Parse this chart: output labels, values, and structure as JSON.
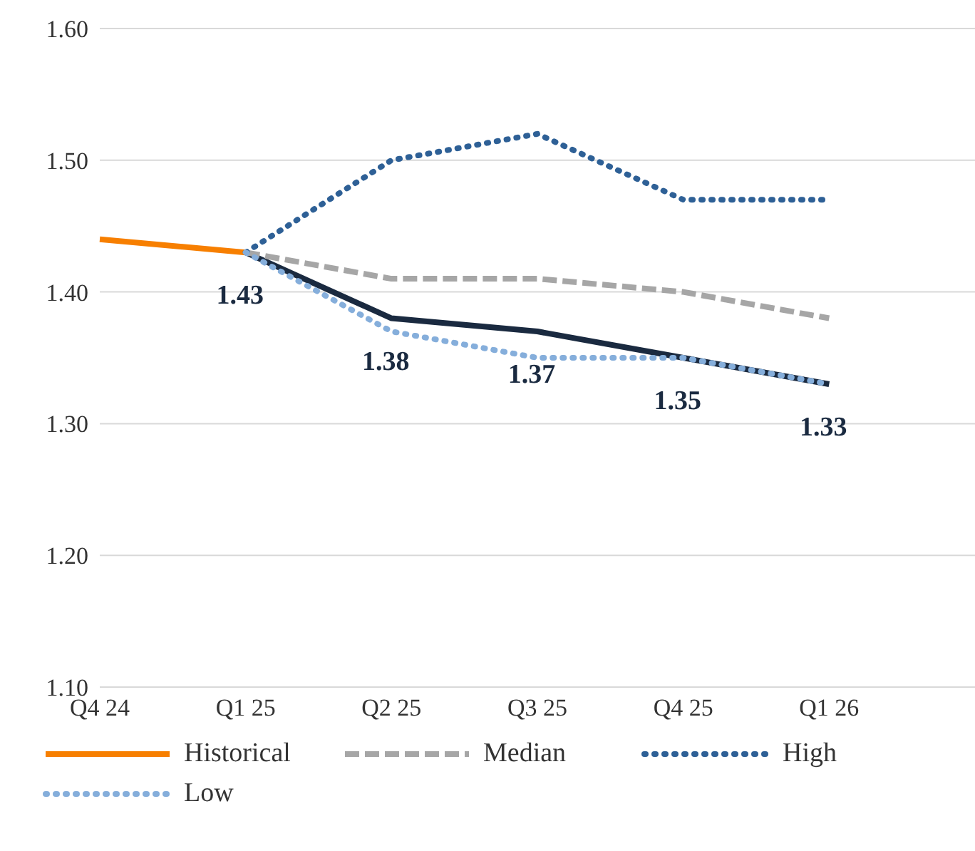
{
  "chart_data": {
    "type": "line",
    "categories": [
      "Q4 24",
      "Q1 25",
      "Q2 25",
      "Q3 25",
      "Q4 25",
      "Q1 26",
      null
    ],
    "series": [
      {
        "name": "Historical",
        "color": "#f77f00",
        "line_style": "solid",
        "values": [
          1.44,
          1.43,
          null,
          null,
          null,
          null,
          null
        ]
      },
      {
        "color": "#1a2a40",
        "line_style": "solid",
        "values": [
          null,
          1.43,
          1.38,
          1.37,
          1.35,
          1.33,
          null
        ],
        "value_labels": [
          null,
          "1.43",
          "1.38",
          "1.37",
          "1.35",
          "1.33",
          null
        ]
      },
      {
        "name": "Median",
        "color": "#a6a6a6",
        "line_style": "dashed",
        "values": [
          null,
          1.43,
          1.41,
          1.41,
          1.4,
          1.38,
          null
        ]
      },
      {
        "name": "High",
        "color": "#2e6096",
        "line_style": "dotted",
        "values": [
          null,
          1.43,
          1.5,
          1.52,
          1.47,
          1.47,
          null
        ]
      },
      {
        "name": "Low",
        "color": "#85aedb",
        "line_style": "dotted",
        "values": [
          null,
          1.43,
          1.37,
          1.35,
          1.35,
          1.33,
          null
        ]
      }
    ],
    "ylim": [
      1.1,
      1.6
    ],
    "yticks": [
      {
        "value": 1.1,
        "label": "1.10"
      },
      {
        "value": 1.2,
        "label": "1.20"
      },
      {
        "value": 1.3,
        "label": "1.30"
      },
      {
        "value": 1.4,
        "label": "1.40"
      },
      {
        "value": 1.5,
        "label": "1.50"
      },
      {
        "value": 1.6,
        "label": "1.60"
      }
    ],
    "grid": "y",
    "legend": "bottom",
    "marker": "none"
  }
}
